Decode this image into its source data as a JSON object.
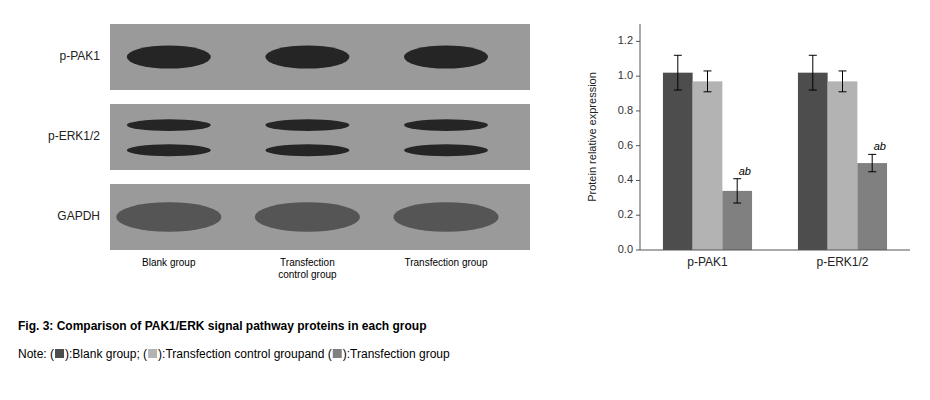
{
  "chart_data": {
    "type": "bar",
    "title": "Fig. 3: Comparison of PAK1/ERK signal pathway proteins in each group",
    "ylabel": "Protein relative expression",
    "categories": [
      "p-PAK1",
      "p-ERK1/2"
    ],
    "series": [
      {
        "name": "Blank group",
        "color": "#4d4d4d",
        "values": [
          1.02,
          1.02
        ],
        "errors": [
          0.1,
          0.1
        ]
      },
      {
        "name": "Transfection control group",
        "color": "#b3b3b3",
        "values": [
          0.97,
          0.97
        ],
        "errors": [
          0.06,
          0.06
        ]
      },
      {
        "name": "Transfection group",
        "color": "#808080",
        "values": [
          0.34,
          0.5
        ],
        "errors": [
          0.07,
          0.05
        ],
        "annotations": [
          "ab",
          "ab"
        ]
      }
    ],
    "ylim": [
      0,
      1.3
    ],
    "yticks": [
      {
        "value": 0,
        "label": "0.0"
      },
      0.2,
      0.4,
      0.6,
      0.8,
      {
        "value": 1.0,
        "label": "1.0"
      },
      1.2
    ],
    "grid": false,
    "legend": "bottom",
    "annotations": {
      "blot_rows": [
        "p-PAK1",
        "p-ERK1/2",
        "GAPDH"
      ],
      "blot_lanes": [
        "Blank group",
        "Transfection\ncontrol group",
        "Transfection group"
      ],
      "note": {
        "open": "Note: (",
        "close": "): ",
        "separators": [
          "; (",
          " and ("
        ]
      }
    }
  }
}
